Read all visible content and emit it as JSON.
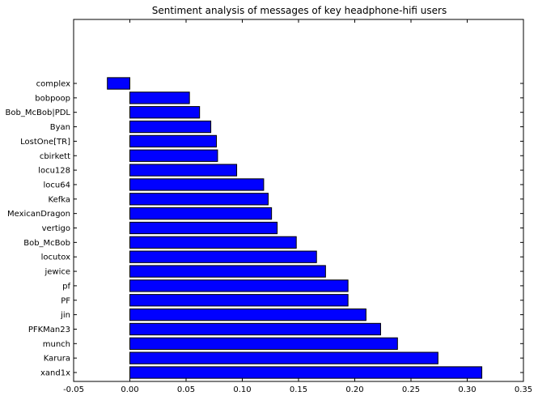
{
  "chart_data": {
    "type": "bar",
    "orientation": "horizontal",
    "title": "Sentiment analysis of messages of key headphone-hifi users",
    "xlabel": "",
    "ylabel": "",
    "xlim": [
      -0.05,
      0.35
    ],
    "xticks": [
      -0.05,
      0.0,
      0.05,
      0.1,
      0.15,
      0.2,
      0.25,
      0.3,
      0.35
    ],
    "xtick_labels": [
      "-0.05",
      "0.00",
      "0.05",
      "0.10",
      "0.15",
      "0.20",
      "0.25",
      "0.30",
      "0.35"
    ],
    "grid": false,
    "bar_color": "#0000ff",
    "categories": [
      "xand1x",
      "Karura",
      "munch",
      "PFKMan23",
      "jin",
      "PF",
      "pf",
      "jewice",
      "locutox",
      "Bob_McBob",
      "vertigo",
      "MexicanDragon",
      "Kefka",
      "locu64",
      "locu128",
      "cbirkett",
      "LostOne[TR]",
      "Byan",
      "Bob_McBob|PDL",
      "bobpoop",
      "complex"
    ],
    "values": [
      0.313,
      0.274,
      0.238,
      0.223,
      0.21,
      0.194,
      0.194,
      0.174,
      0.166,
      0.148,
      0.131,
      0.126,
      0.123,
      0.119,
      0.095,
      0.078,
      0.077,
      0.072,
      0.062,
      0.053,
      -0.02
    ]
  }
}
